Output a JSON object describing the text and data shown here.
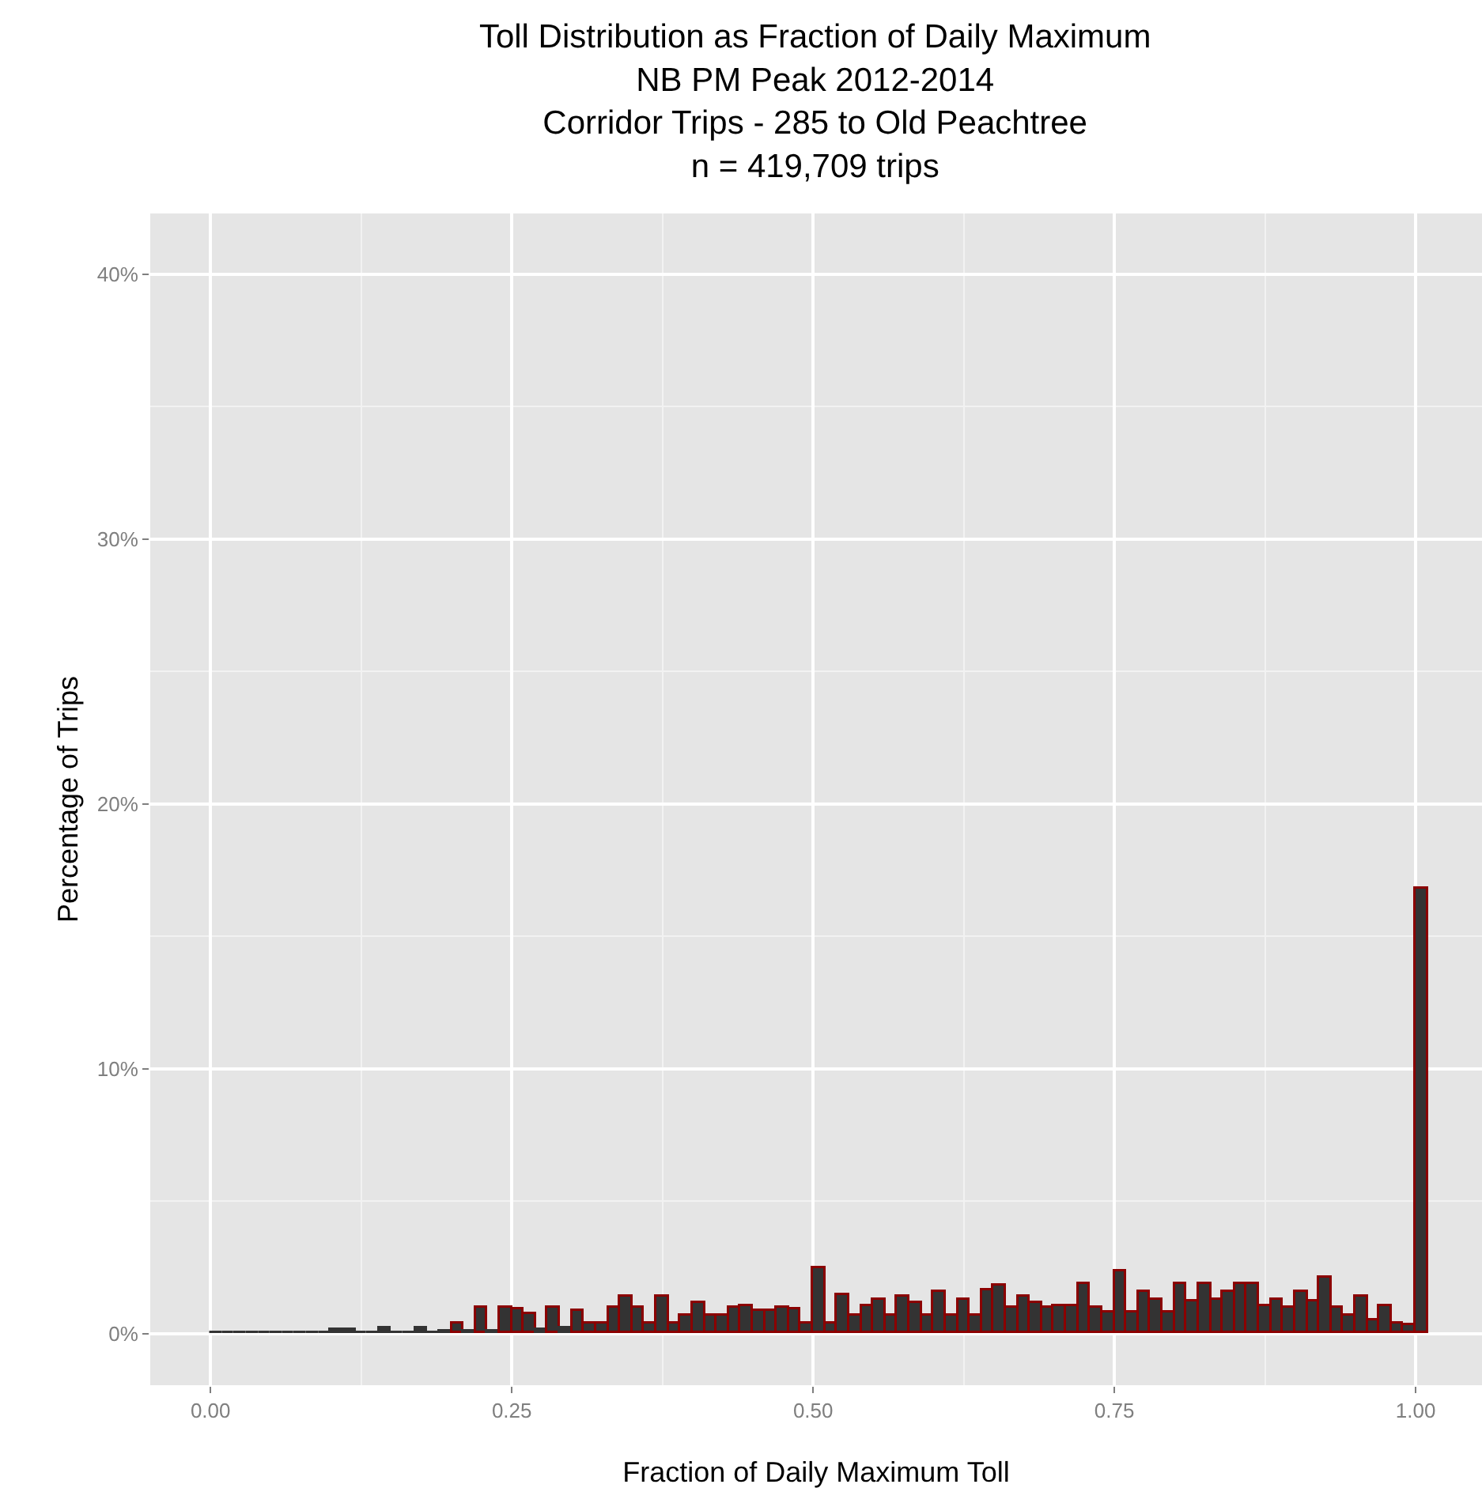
{
  "chart_data": {
    "type": "histogram",
    "title": "Toll Distribution as Fraction of Daily Maximum\nNB PM Peak 2012-2014\nCorridor Trips - 285 to Old Peachtree\nn = 419,709 trips",
    "xlabel": "Fraction of Daily Maximum Toll",
    "ylabel": "Percentage of Trips",
    "bins": [
      0,
      0.01,
      0.02,
      0.03,
      0.04,
      0.05,
      0.06,
      0.07,
      0.08,
      0.09,
      0.1,
      0.11,
      0.12,
      0.13,
      0.14,
      0.15,
      0.16,
      0.17,
      0.18,
      0.19,
      0.2,
      0.21,
      0.22,
      0.23,
      0.24,
      0.25,
      0.26,
      0.27,
      0.28,
      0.29,
      0.3,
      0.31,
      0.32,
      0.33,
      0.34,
      0.35,
      0.36,
      0.37,
      0.38,
      0.39,
      0.4,
      0.41,
      0.42,
      0.43,
      0.44,
      0.45,
      0.46,
      0.47,
      0.48,
      0.49,
      0.5,
      0.51,
      0.52,
      0.53,
      0.54,
      0.55,
      0.56,
      0.57,
      0.58,
      0.59,
      0.6,
      0.61,
      0.62,
      0.63,
      0.64,
      0.65,
      0.66,
      0.67,
      0.68,
      0.69,
      0.7,
      0.71,
      0.72,
      0.73,
      0.74,
      0.75,
      0.76,
      0.77,
      0.78,
      0.79,
      0.8,
      0.81,
      0.82,
      0.83,
      0.84,
      0.85,
      0.86,
      0.87,
      0.88,
      0.89,
      0.9,
      0.91,
      0.92,
      0.93,
      0.94,
      0.95,
      0.96,
      0.97,
      0.98,
      0.99,
      1,
      1.01
    ],
    "values": [
      0,
      0,
      0,
      0,
      0,
      0,
      0,
      0,
      0,
      0,
      0.15,
      0.15,
      0.05,
      0.05,
      0.2,
      0.05,
      0.05,
      0.2,
      0.05,
      0.1,
      0.35,
      0.1,
      0.95,
      0.1,
      1.0,
      0.9,
      0.75,
      0.15,
      1.0,
      0.2,
      0.85,
      0.4,
      0.4,
      0.95,
      1.4,
      0.95,
      0.4,
      1.4,
      0.35,
      0.7,
      1.15,
      0.65,
      0.65,
      0.95,
      1.05,
      0.85,
      0.85,
      0.95,
      0.9,
      0.4,
      2.45,
      0.4,
      1.45,
      0.7,
      1.05,
      1.3,
      0.7,
      1.4,
      1.15,
      0.65,
      1.55,
      0.65,
      1.25,
      0.65,
      1.65,
      1.8,
      1.0,
      1.4,
      1.15,
      0.95,
      1.05,
      1.05,
      1.85,
      0.95,
      0.8,
      2.35,
      0.8,
      1.6,
      1.3,
      0.8,
      1.85,
      1.2,
      1.9,
      1.3,
      1.55,
      1.9,
      1.9,
      1.05,
      1.3,
      1.0,
      1.6,
      1.2,
      2.1,
      0.95,
      0.7,
      1.4,
      0.5,
      1.05,
      0.4,
      0.3,
      16.8
    ],
    "color": "#333333",
    "xlim": [
      -0.05,
      1.055
    ],
    "xticks": [
      {
        "value": 0,
        "label": "0.00"
      },
      {
        "value": 0.25,
        "label": "0.25"
      },
      {
        "value": 0.5,
        "label": "0.50"
      },
      {
        "value": 0.75,
        "label": "0.75"
      },
      {
        "value": 1,
        "label": "1.00"
      }
    ],
    "ylim": [
      -1.95,
      42.3
    ],
    "yticks": [
      {
        "value": 0,
        "label": "0%"
      },
      {
        "value": 10,
        "label": "10%"
      },
      {
        "value": 20,
        "label": "20%"
      },
      {
        "value": 30,
        "label": "30%"
      },
      {
        "value": 40,
        "label": "40%"
      }
    ],
    "grid": true
  }
}
